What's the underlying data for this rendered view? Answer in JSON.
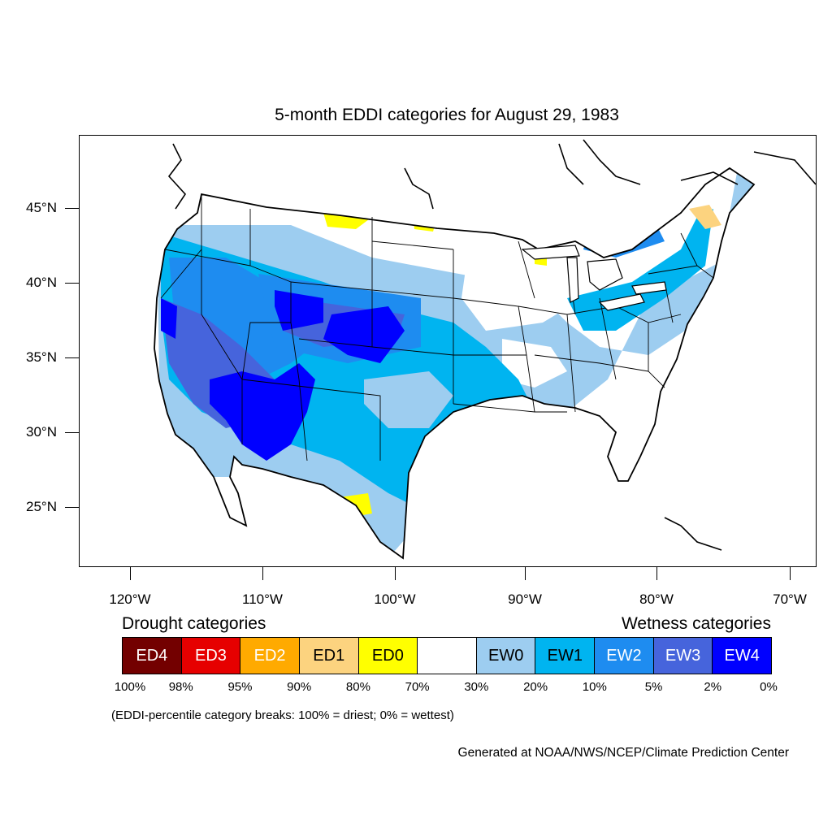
{
  "title": "5-month EDDI categories for August 29, 1983",
  "lat_labels": [
    "45°N",
    "40°N",
    "35°N",
    "30°N",
    "25°N"
  ],
  "lon_labels": [
    "120°W",
    "110°W",
    "100°W",
    "90°W",
    "80°W",
    "70°W"
  ],
  "legend": {
    "drought_title": "Drought categories",
    "wetness_title": "Wetness categories",
    "categories": [
      {
        "label": "ED4",
        "color": "#730000",
        "text_color": "#ffffff"
      },
      {
        "label": "ED3",
        "color": "#e60000",
        "text_color": "#ffffff"
      },
      {
        "label": "ED2",
        "color": "#ffaa00",
        "text_color": "#ffffff"
      },
      {
        "label": "ED1",
        "color": "#fcd37f",
        "text_color": "#000000"
      },
      {
        "label": "ED0",
        "color": "#ffff00",
        "text_color": "#000000"
      },
      {
        "label": "",
        "color": "#ffffff",
        "text_color": "#000000"
      },
      {
        "label": "EW0",
        "color": "#9dcdf0",
        "text_color": "#000000"
      },
      {
        "label": "EW1",
        "color": "#00b4f0",
        "text_color": "#000000"
      },
      {
        "label": "EW2",
        "color": "#1e8cf0",
        "text_color": "#ffffff"
      },
      {
        "label": "EW3",
        "color": "#4664dc",
        "text_color": "#ffffff"
      },
      {
        "label": "EW4",
        "color": "#0000ff",
        "text_color": "#ffffff"
      }
    ],
    "percentiles": [
      "100%",
      "98%",
      "95%",
      "90%",
      "80%",
      "70%",
      "30%",
      "20%",
      "10%",
      "5%",
      "2%",
      "0%"
    ]
  },
  "note": "(EDDI-percentile category breaks: 100% = driest; 0% = wettest)",
  "credit": "Generated at NOAA/NWS/NCEP/Climate Prediction Center"
}
